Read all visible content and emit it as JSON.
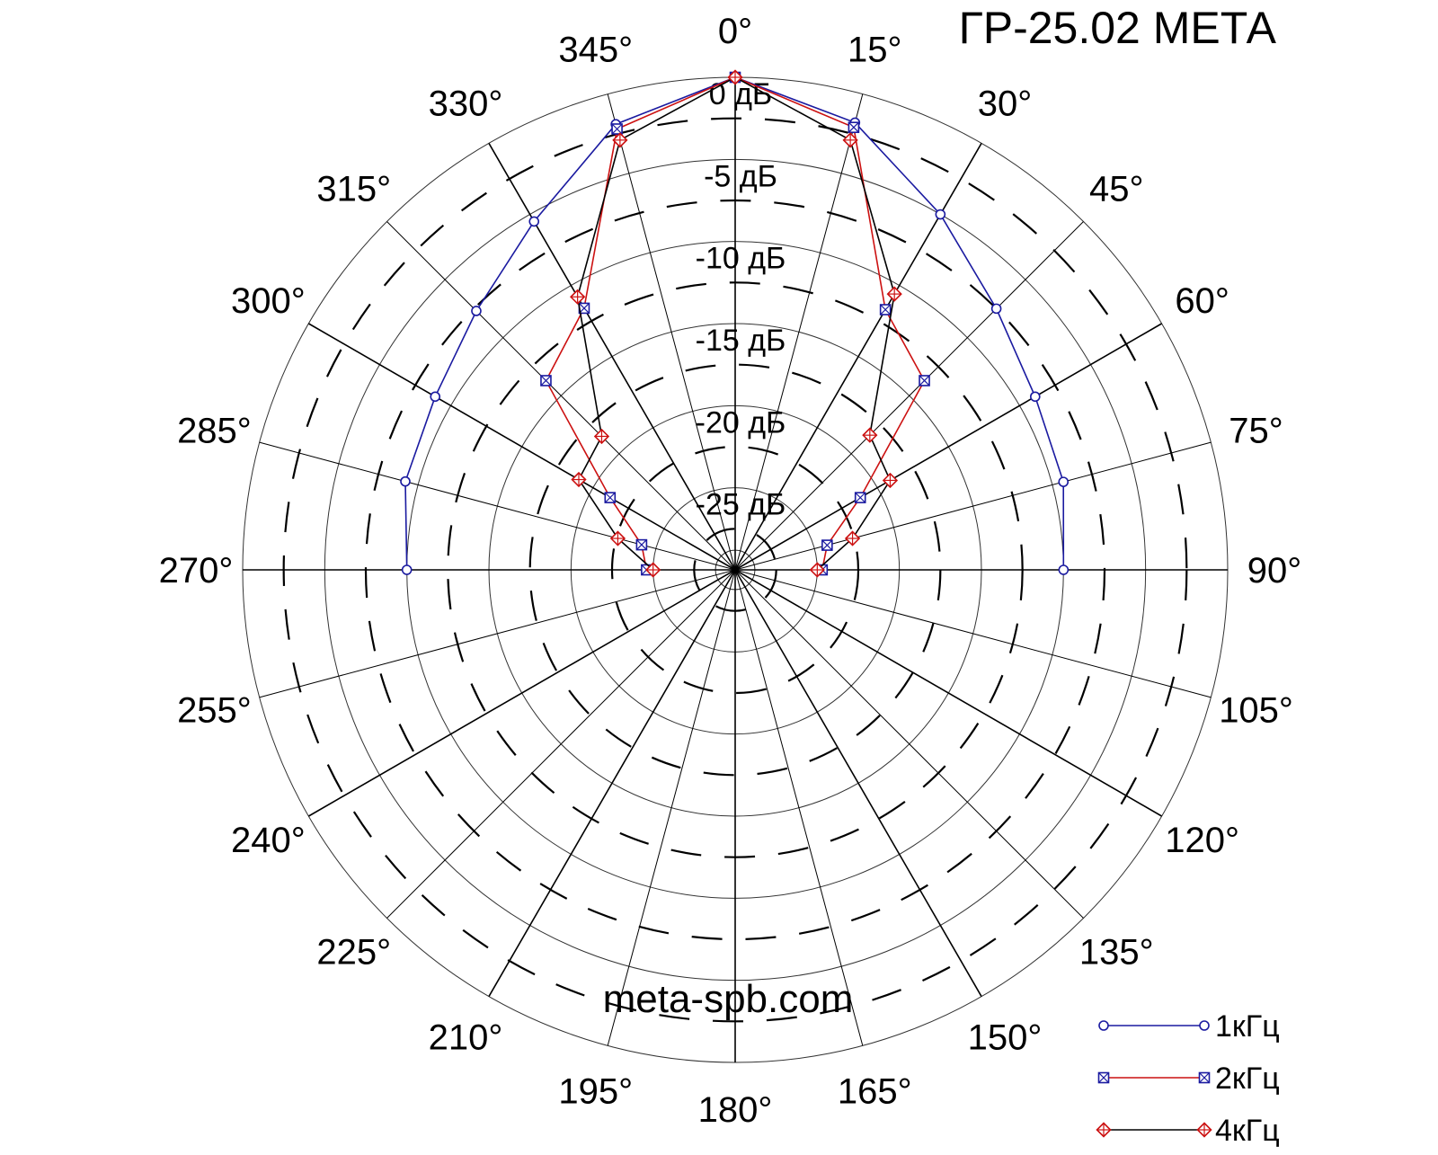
{
  "title": "ГР-25.02 МЕТА",
  "website": "meta-spb.com",
  "chart_data": {
    "type": "polar",
    "title": "ГР-25.02 МЕТА",
    "angle_unit": "degrees",
    "angle_ticks": [
      0,
      15,
      30,
      45,
      60,
      75,
      90,
      105,
      120,
      135,
      150,
      165,
      180,
      195,
      210,
      225,
      240,
      255,
      270,
      285,
      300,
      315,
      330,
      345
    ],
    "angle_tick_labels": [
      "0°",
      "15°",
      "30°",
      "45°",
      "60°",
      "75°",
      "90°",
      "105°",
      "120°",
      "135°",
      "150°",
      "165°",
      "180°",
      "195°",
      "210°",
      "225°",
      "240°",
      "255°",
      "270°",
      "285°",
      "300°",
      "315°",
      "330°",
      "345°"
    ],
    "radial_unit": "дБ",
    "radial_range": [
      -30,
      0
    ],
    "radial_ticks": [
      0,
      -5,
      -10,
      -15,
      -20,
      -25
    ],
    "radial_tick_labels": [
      "0 дБ",
      "-5 дБ",
      "-10 дБ",
      "-15 дБ",
      "-20 дБ",
      "-25 дБ"
    ],
    "legend_position": "bottom-right",
    "series": [
      {
        "name": "1кГц",
        "line_color": "#1a1aa0",
        "marker": "circle",
        "marker_color": "#1a1aa0",
        "angles": [
          270,
          285,
          300,
          315,
          330,
          345,
          0,
          15,
          30,
          45,
          60,
          75,
          90
        ],
        "values": [
          -10,
          -9.2,
          -8.9,
          -7.7,
          -5.5,
          -1.9,
          0,
          -1.8,
          -5.0,
          -7.5,
          -8.9,
          -9.3,
          -10
        ]
      },
      {
        "name": "2кГц",
        "line_color": "#cc1111",
        "marker": "square-x",
        "marker_color": "#1a1aa0",
        "angles": [
          270,
          285,
          300,
          315,
          330,
          345,
          0,
          15,
          30,
          45,
          60,
          75,
          90
        ],
        "values": [
          -24.6,
          -24.1,
          -21.2,
          -13.7,
          -11.6,
          -2.2,
          0,
          -2.1,
          -11.7,
          -13.7,
          -21.2,
          -24.2,
          -24.7
        ]
      },
      {
        "name": "4кГц",
        "line_color": "#000000",
        "marker": "diamond",
        "marker_color": "#cc1111",
        "angles": [
          270,
          285,
          300,
          315,
          330,
          345,
          0,
          15,
          30,
          45,
          60,
          75,
          90
        ],
        "values": [
          -25,
          -22.6,
          -19.0,
          -18.5,
          -10.8,
          -2.9,
          0,
          -2.9,
          -10.6,
          -18.4,
          -19.1,
          -22.6,
          -25
        ]
      }
    ]
  }
}
